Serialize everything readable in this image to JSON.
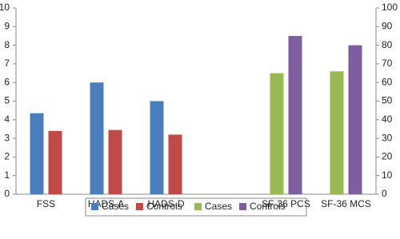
{
  "chart_data": {
    "type": "bar",
    "categories": [
      "FSS",
      "HADS-A",
      "HADS-D",
      null,
      "SF-36 PCS",
      "SF-36 MCS"
    ],
    "series": [
      {
        "name": "Cases",
        "color": "#4a7ebb",
        "values": [
          4.35,
          6,
          5,
          null,
          null,
          null
        ]
      },
      {
        "name": "Controls",
        "color": "#be4b48",
        "values": [
          3.4,
          3.45,
          3.2,
          null,
          null,
          null
        ]
      },
      {
        "name": "Cases",
        "color": "#98b954",
        "axis": "y2",
        "values": [
          null,
          null,
          null,
          null,
          65,
          66
        ]
      },
      {
        "name": "Controls",
        "color": "#7d5fa0",
        "axis": "y2",
        "values": [
          null,
          null,
          null,
          null,
          85,
          80
        ]
      }
    ],
    "ylim": [
      0,
      10
    ],
    "yticks": [
      0,
      1,
      2,
      3,
      4,
      5,
      6,
      7,
      8,
      9,
      10
    ],
    "y2lim": [
      0,
      100
    ],
    "y2ticks": [
      0,
      10,
      20,
      30,
      40,
      50,
      60,
      70,
      80,
      90,
      100
    ],
    "legend": "bottom"
  }
}
